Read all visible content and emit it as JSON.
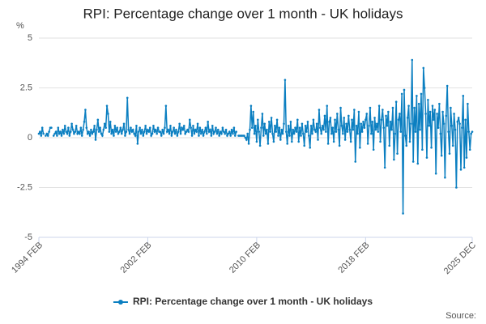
{
  "chart_data": {
    "type": "line",
    "title": "RPI: Percentage change over 1 month - UK holidays",
    "y_unit": "%",
    "source_label": "Source:",
    "xlim": [
      0,
      382
    ],
    "xticks": [
      {
        "value": 0,
        "label": "1994 FEB"
      },
      {
        "value": 96,
        "label": "2002 FEB"
      },
      {
        "value": 192,
        "label": "2010 FEB"
      },
      {
        "value": 288,
        "label": "2018 FEB"
      },
      {
        "value": 382,
        "label": "2025 DEC"
      }
    ],
    "ylim": [
      -5,
      5
    ],
    "yticks": [
      -5,
      -2.5,
      0,
      2.5,
      5
    ],
    "grid": true,
    "legend": "bottom",
    "series": [
      {
        "name": "RPI: Percentage change over 1 month - UK holidays",
        "color": "#0b7fc1",
        "values": [
          0.2,
          0.3,
          0.1,
          0.5,
          0.2,
          null,
          0.1,
          0.2,
          0.1,
          0.3,
          0.5,
          0.5,
          null,
          0.1,
          0.2,
          0.3,
          0.1,
          0.5,
          0.2,
          0.3,
          0.1,
          0.4,
          0.2,
          0.6,
          0.3,
          0.2,
          0.5,
          0.1,
          0.3,
          0.7,
          0.4,
          0.2,
          0.3,
          0.6,
          0.2,
          0.3,
          0.2,
          0.5,
          0.1,
          0.4,
          0.8,
          1.4,
          0.5,
          0.2,
          0.3,
          0.1,
          0.4,
          0.2,
          0.3,
          0.6,
          -0.1,
          0.4,
          0.9,
          0.3,
          0.5,
          0.2,
          0.1,
          0.4,
          0.7,
          0.5,
          1.6,
          1.2,
          0.3,
          0.8,
          0.2,
          0.4,
          0.1,
          0.6,
          0.3,
          0.5,
          0.2,
          0.3,
          0.5,
          0.2,
          0.4,
          0.7,
          0.1,
          0.3,
          2.0,
          0.4,
          0.2,
          0.5,
          0.3,
          0.4,
          0.2,
          0.1,
          0.6,
          -0.3,
          0.3,
          0.5,
          0.2,
          0.4,
          0.1,
          0.3,
          0.6,
          0.2,
          0.4,
          0.3,
          0.5,
          0.1,
          0.2,
          0.6,
          0.3,
          0.4,
          0.2,
          0.5,
          0.3,
          0.3,
          0.1,
          0.4,
          0.2,
          0.5,
          1.6,
          0.3,
          0.4,
          0.2,
          0.6,
          0.1,
          0.3,
          0.5,
          0.2,
          0.4,
          0.1,
          0.3,
          0.7,
          0.2,
          0.5,
          0.4,
          0.6,
          0.2,
          0.3,
          0.4,
          0.3,
          0.9,
          0.5,
          0.1,
          0.6,
          0.2,
          0.4,
          0.3,
          0.7,
          0.1,
          0.5,
          0.2,
          0.4,
          0.1,
          0.3,
          0.5,
          0.2,
          0.8,
          0.3,
          0.4,
          0.1,
          0.6,
          0.2,
          0.3,
          0.5,
          0.2,
          0.4,
          0.1,
          0.3,
          0.2,
          0.5,
          0.3,
          0.2,
          0.4,
          0.1,
          0.2,
          0.3,
          0.1,
          0.4,
          0.2,
          0.5,
          0.1,
          0.3,
          null,
          0.1,
          0.1,
          0.1,
          0.1,
          0.1,
          0.1,
          0.0,
          -0.1,
          0.2,
          -0.3,
          0.4,
          1.6,
          0.5,
          1.3,
          0.2,
          0.6,
          -0.2,
          0.9,
          0.3,
          -0.4,
          0.5,
          1.2,
          0.1,
          0.7,
          0.2,
          0.4,
          -0.3,
          0.8,
          0.3,
          1.0,
          0.2,
          -0.2,
          0.6,
          0.3,
          0.9,
          0.1,
          0.5,
          -0.1,
          0.4,
          0.2,
          0.7,
          2.9,
          0.3,
          -0.3,
          0.6,
          0.1,
          0.8,
          -0.2,
          0.4,
          0.2,
          0.5,
          0.3,
          0.9,
          -0.2,
          0.5,
          0.1,
          0.7,
          0.2,
          -0.4,
          0.6,
          0.3,
          0.8,
          0.1,
          -0.5,
          0.6,
          0.2,
          0.9,
          0.4,
          0.3,
          0.7,
          -0.1,
          1.4,
          0.5,
          0.2,
          0.6,
          0.4,
          1.1,
          0.3,
          1.6,
          -0.3,
          0.8,
          1.0,
          0.2,
          0.5,
          -0.2,
          0.9,
          0.3,
          1.2,
          0.4,
          -0.4,
          1.5,
          0.6,
          0.2,
          1.0,
          -0.1,
          0.7,
          0.3,
          1.1,
          0.4,
          -0.2,
          0.9,
          0.4,
          1.4,
          -1.2,
          0.6,
          0.2,
          1.3,
          -0.5,
          0.7,
          0.3,
          0.8,
          0.5,
          0.9,
          1.2,
          -0.3,
          0.6,
          1.5,
          0.2,
          0.8,
          -0.6,
          1.0,
          0.4,
          0.7,
          0.3,
          1.6,
          -0.2,
          0.9,
          1.4,
          0.5,
          -1.5,
          1.1,
          0.6,
          1.3,
          -0.4,
          0.8,
          0.4,
          1.5,
          -1.1,
          0.2,
          1.8,
          -0.8,
          0.9,
          1.2,
          0.3,
          2.2,
          -3.8,
          2.4,
          0.1,
          -0.4,
          1.0,
          1.6,
          -0.2,
          0.7,
          3.9,
          -1.2,
          1.5,
          0.3,
          2.1,
          -1.3,
          1.7,
          0.4,
          2.2,
          -0.6,
          3.5,
          2.5,
          1.2,
          -1.0,
          1.9,
          0.6,
          1.3,
          -0.5,
          1.6,
          0.9,
          1.4,
          -1.8,
          1.2,
          0.5,
          1.7,
          0.2,
          -0.9,
          1.3,
          0.7,
          -2.0,
          1.1,
          2.6,
          0.3,
          -0.8,
          1.5,
          0.6,
          -0.4,
          1.2,
          0.4,
          -2.5,
          0.8,
          1.0,
          0.7,
          -1.6,
          0.5,
          2.1,
          -1.5,
          0.9,
          -1.0,
          1.7,
          0.3,
          -0.6,
          0.2,
          0.3
        ]
      }
    ]
  }
}
